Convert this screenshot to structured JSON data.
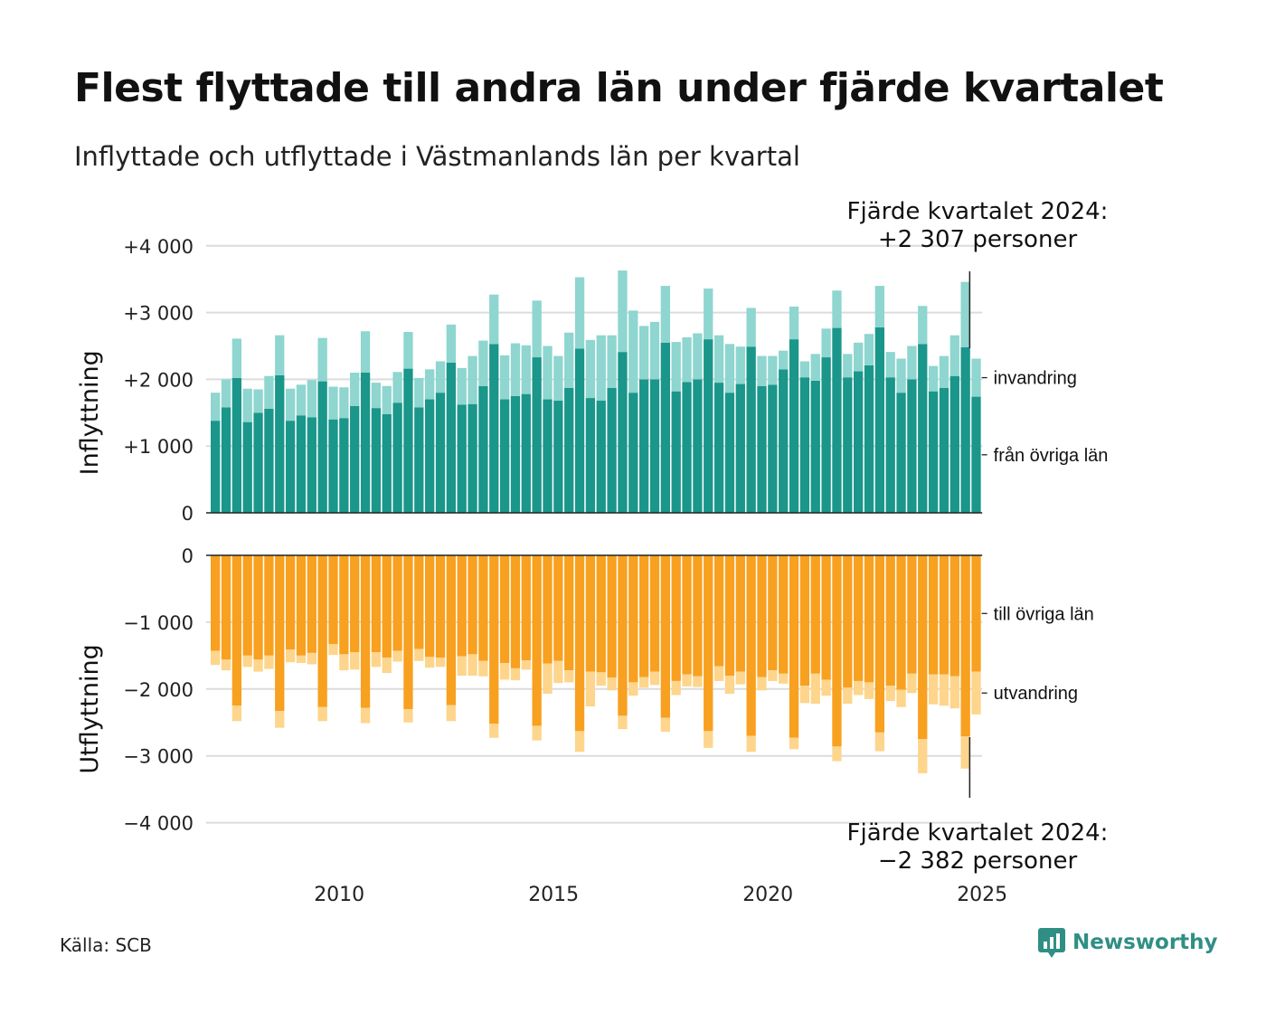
{
  "title": "Flest flyttade till andra län under fjärde kvartalet",
  "subtitle": "Inflyttade och utflyttade i Västmanlands län per kvartal",
  "source": "Källa: SCB",
  "brand": "Newsworthy",
  "icons": {
    "brand": "newsworthy-logo-icon"
  },
  "colors": {
    "domestic_in": "#1a968a",
    "immigration": "#8ed6cf",
    "domestic_out": "#f8a01f",
    "emigration": "#fdd58c",
    "grid": "#dcdcdc",
    "axis": "#222222"
  },
  "chart_data": [
    {
      "type": "bar",
      "stacked": true,
      "ylabel": "Inflyttning",
      "ylim": [
        0,
        4000
      ],
      "yticks": [
        0,
        1000,
        2000,
        3000,
        4000
      ],
      "ytick_labels": [
        "0",
        "+1 000",
        "+2 000",
        "+3 000",
        "+4 000"
      ],
      "x_start": "2007 K1",
      "x_end": "2024 K4",
      "xtick_years": [
        2010,
        2015,
        2020,
        2025
      ],
      "annotation": [
        "Fjärde kvartalet 2024:",
        "+2 307 personer"
      ],
      "series": [
        {
          "name": "från övriga län",
          "values": [
            1380,
            1580,
            2020,
            1360,
            1500,
            1560,
            2060,
            1380,
            1460,
            1430,
            1970,
            1400,
            1420,
            1600,
            2100,
            1570,
            1480,
            1650,
            2160,
            1580,
            1700,
            1800,
            2250,
            1620,
            1630,
            1900,
            2530,
            1700,
            1750,
            1780,
            2330,
            1700,
            1680,
            1870,
            2460,
            1720,
            1680,
            1870,
            2410,
            1800,
            2000,
            2000,
            2550,
            1820,
            1960,
            2000,
            2600,
            1950,
            1800,
            1930,
            2490,
            1900,
            1920,
            2150,
            2600,
            2030,
            1980,
            2330,
            2770,
            2030,
            2120,
            2210,
            2780,
            2030,
            1800,
            2000,
            2530,
            1820,
            1870,
            2050,
            2480,
            1740
          ]
        },
        {
          "name": "invandring",
          "values": [
            420,
            420,
            590,
            500,
            350,
            490,
            600,
            480,
            460,
            560,
            650,
            490,
            460,
            500,
            620,
            380,
            420,
            460,
            550,
            440,
            450,
            470,
            570,
            550,
            720,
            680,
            740,
            660,
            790,
            730,
            850,
            800,
            670,
            830,
            1070,
            870,
            980,
            790,
            1220,
            1230,
            800,
            860,
            850,
            740,
            670,
            690,
            760,
            710,
            730,
            560,
            580,
            450,
            430,
            280,
            490,
            240,
            400,
            430,
            560,
            350,
            430,
            470,
            620,
            380,
            510,
            500,
            570,
            380,
            480,
            610,
            980,
            570
          ]
        }
      ]
    },
    {
      "type": "bar",
      "stacked": true,
      "ylabel": "Utflyttning",
      "ylim": [
        -4000,
        0
      ],
      "yticks": [
        0,
        -1000,
        -2000,
        -3000,
        -4000
      ],
      "ytick_labels": [
        "0",
        "−1 000",
        "−2 000",
        "−3 000",
        "−4 000"
      ],
      "x_start": "2007 K1",
      "x_end": "2024 K4",
      "xtick_years": [
        2010,
        2015,
        2020,
        2025
      ],
      "annotation": [
        "Fjärde kvartalet 2024:",
        "−2 382 personer"
      ],
      "series": [
        {
          "name": "till övriga län",
          "values": [
            -1430,
            -1560,
            -2250,
            -1500,
            -1560,
            -1500,
            -2330,
            -1410,
            -1500,
            -1460,
            -2270,
            -1330,
            -1480,
            -1450,
            -2280,
            -1450,
            -1530,
            -1430,
            -2300,
            -1400,
            -1520,
            -1530,
            -2240,
            -1510,
            -1480,
            -1580,
            -2520,
            -1610,
            -1690,
            -1570,
            -2550,
            -1620,
            -1580,
            -1720,
            -2630,
            -1740,
            -1750,
            -1830,
            -2400,
            -1900,
            -1820,
            -1740,
            -2430,
            -1880,
            -1780,
            -1810,
            -2630,
            -1660,
            -1800,
            -1740,
            -2700,
            -1820,
            -1720,
            -1770,
            -2730,
            -1950,
            -1770,
            -1860,
            -2860,
            -1980,
            -1880,
            -1900,
            -2650,
            -1950,
            -2010,
            -1770,
            -2750,
            -1780,
            -1780,
            -1810,
            -2710,
            -1740
          ]
        },
        {
          "name": "utvandring",
          "values": [
            -210,
            -160,
            -230,
            -170,
            -180,
            -200,
            -250,
            -190,
            -110,
            -170,
            -210,
            -160,
            -240,
            -260,
            -230,
            -220,
            -230,
            -160,
            -200,
            -180,
            -160,
            -140,
            -240,
            -290,
            -320,
            -230,
            -210,
            -250,
            -180,
            -140,
            -220,
            -450,
            -330,
            -180,
            -310,
            -520,
            -200,
            -190,
            -200,
            -200,
            -160,
            -200,
            -210,
            -210,
            -180,
            -160,
            -250,
            -220,
            -270,
            -190,
            -240,
            -200,
            -160,
            -150,
            -170,
            -260,
            -450,
            -240,
            -220,
            -240,
            -210,
            -250,
            -280,
            -230,
            -260,
            -290,
            -510,
            -450,
            -470,
            -480,
            -480,
            -640
          ]
        }
      ]
    }
  ]
}
